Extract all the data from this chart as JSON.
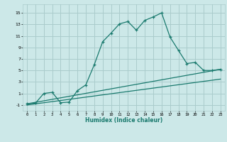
{
  "xlabel": "Humidex (Indice chaleur)",
  "background_color": "#cce8e8",
  "grid_color": "#aacccc",
  "line_color": "#1a7a6e",
  "xlim": [
    -0.5,
    23.5
  ],
  "ylim": [
    -2.0,
    16.5
  ],
  "xticks": [
    0,
    1,
    2,
    3,
    4,
    5,
    6,
    7,
    8,
    9,
    10,
    11,
    12,
    13,
    14,
    15,
    16,
    17,
    18,
    19,
    20,
    21,
    22,
    23
  ],
  "yticks": [
    -1,
    1,
    3,
    5,
    7,
    9,
    11,
    13,
    15
  ],
  "curve_x": [
    0,
    1,
    2,
    3,
    4,
    5,
    6,
    7,
    8,
    9,
    10,
    11,
    12,
    13,
    14,
    15,
    16,
    17,
    18,
    19,
    20,
    21,
    22,
    23
  ],
  "curve_y": [
    -0.8,
    -0.7,
    1.0,
    1.2,
    -0.6,
    -0.5,
    1.5,
    2.5,
    6.0,
    10.0,
    11.5,
    13.1,
    13.5,
    12.0,
    13.7,
    14.3,
    15.0,
    10.8,
    8.5,
    6.2,
    6.4,
    5.0,
    5.0,
    5.2
  ],
  "line1_x": [
    0,
    23
  ],
  "line1_y": [
    -0.8,
    5.2
  ],
  "line2_x": [
    0,
    23
  ],
  "line2_y": [
    -1.0,
    3.5
  ]
}
